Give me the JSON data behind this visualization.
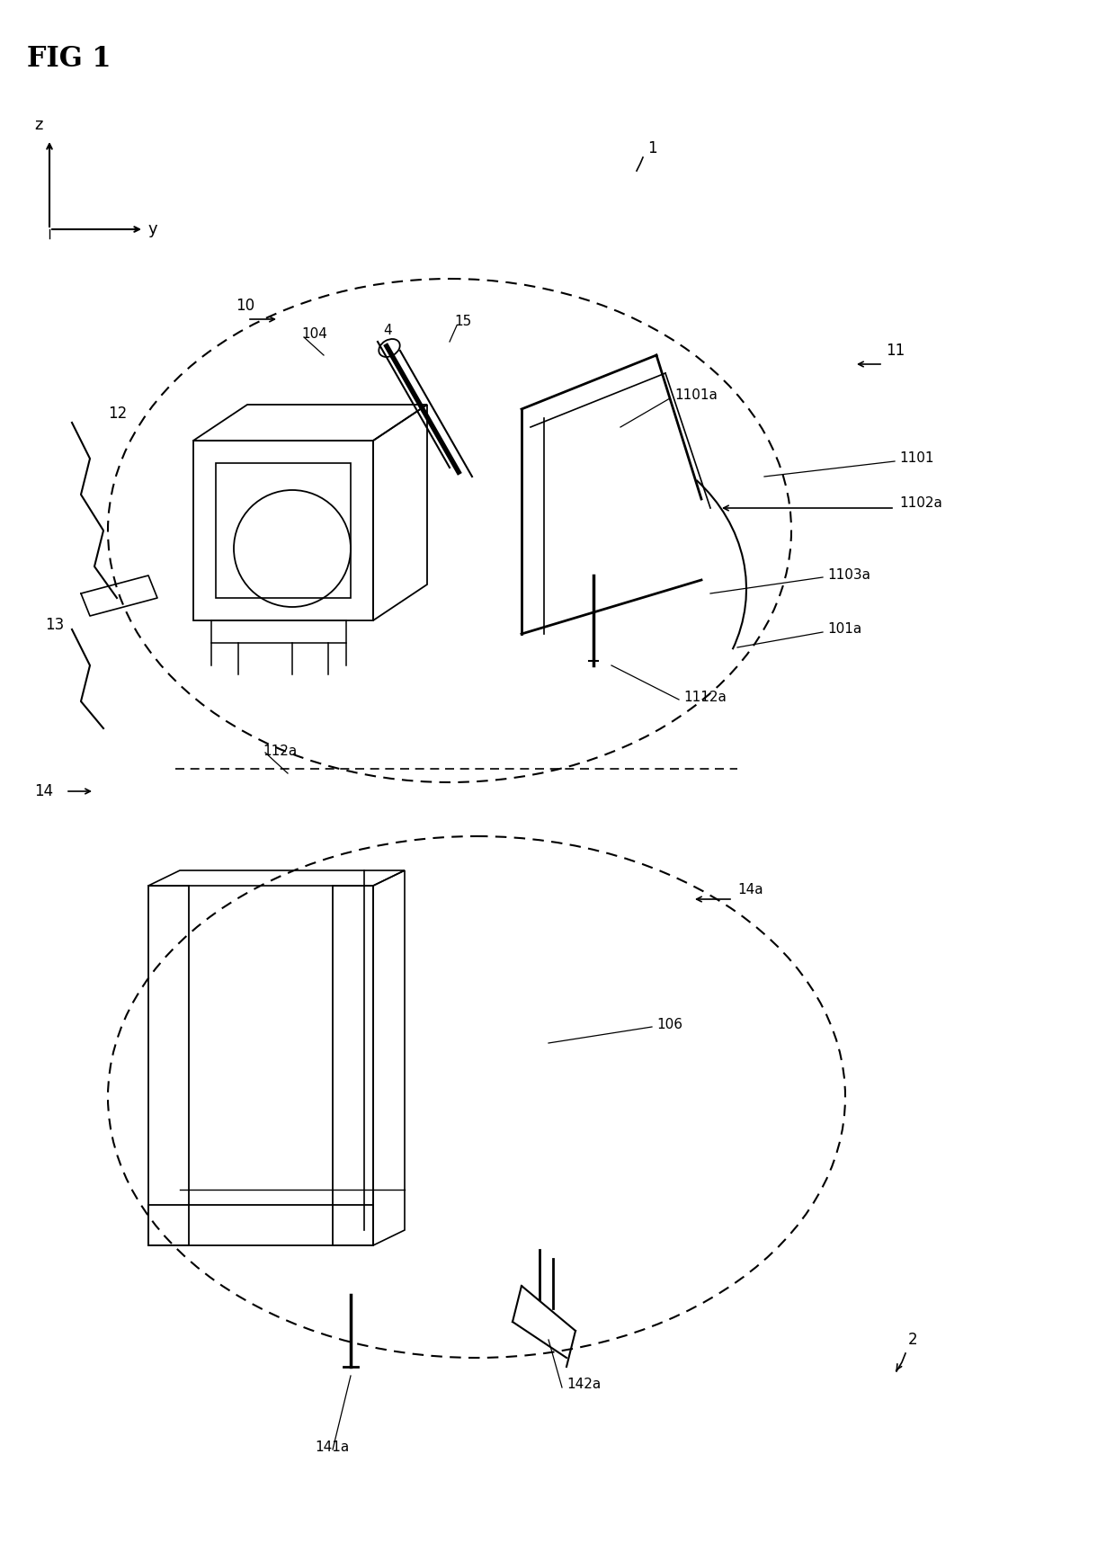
{
  "title": "FIG 1",
  "background_color": "#ffffff",
  "line_color": "#000000",
  "fig_width": 12.4,
  "fig_height": 17.16,
  "labels": {
    "fig_title": "FIG 1",
    "coord_z": "z",
    "coord_y": "y",
    "label_1": "1",
    "label_2": "2",
    "label_4": "4",
    "label_10": "10",
    "label_11": "11",
    "label_12": "12",
    "label_13": "13",
    "label_14": "14",
    "label_15": "15",
    "label_101a": "101a",
    "label_104": "104",
    "label_106": "106",
    "label_112a": "112a",
    "label_1101": "1101",
    "label_1101a": "1101a",
    "label_1102a": "1102a",
    "label_1103a": "1103a",
    "label_1112a": "1112a",
    "label_14a": "14a",
    "label_141a": "141a",
    "label_142a": "142a"
  }
}
